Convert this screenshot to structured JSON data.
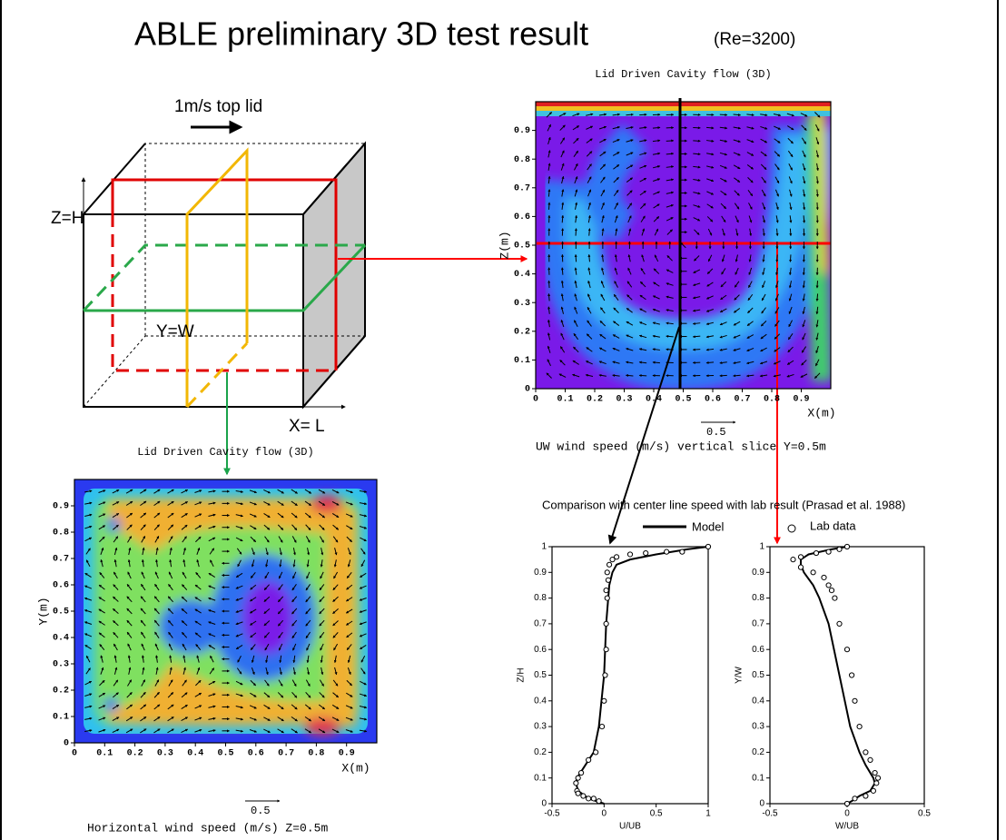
{
  "title": "ABLE preliminary 3D test  result",
  "subtitle": "(Re=3200)",
  "diagram": {
    "lid_label": "1m/s top lid",
    "z_label": "Z=H",
    "y_label": "Y=W",
    "x_label": "X= L"
  },
  "comparison_title": "Comparison  with center line speed with lab result (Prasad et al. 1988)",
  "chart_data": [
    {
      "type": "contour",
      "title": "Lid Driven Cavity flow (3D)",
      "x_label": "X(m)",
      "y_label": "Z(m)",
      "caption": "UW wind speed (m/s) vertical slice Y=0.5m",
      "scale_label": "0.5",
      "xlim": [
        0,
        1
      ],
      "ylim": [
        0,
        1
      ],
      "xticks": [
        0,
        0.1,
        0.2,
        0.3,
        0.4,
        0.5,
        0.6,
        0.7,
        0.8,
        0.9
      ],
      "yticks": [
        0,
        0.1,
        0.2,
        0.3,
        0.4,
        0.5,
        0.6,
        0.7,
        0.8,
        0.9
      ]
    },
    {
      "type": "contour",
      "title": "Lid Driven Cavity flow (3D)",
      "x_label": "X(m)",
      "y_label": "Y(m)",
      "caption": "Horizontal wind speed (m/s) Z=0.5m",
      "scale_label": "0.5",
      "xlim": [
        0,
        1
      ],
      "ylim": [
        0,
        1
      ],
      "xticks": [
        0,
        0.1,
        0.2,
        0.3,
        0.4,
        0.5,
        0.6,
        0.7,
        0.8,
        0.9
      ],
      "yticks": [
        0,
        0.1,
        0.2,
        0.3,
        0.4,
        0.5,
        0.6,
        0.7,
        0.8,
        0.9
      ]
    },
    {
      "type": "line",
      "x_label": "U/UB",
      "y_label": "Z/H",
      "xlim": [
        -0.5,
        1
      ],
      "ylim": [
        0,
        1
      ],
      "xticks": [
        -0.5,
        0,
        0.5,
        1
      ],
      "yticks": [
        0,
        0.1,
        0.2,
        0.3,
        0.4,
        0.5,
        0.6,
        0.7,
        0.8,
        0.9,
        1
      ],
      "series": [
        {
          "name": "Model",
          "mode": "line",
          "color": "#000000",
          "x": [
            0,
            -0.15,
            -0.25,
            -0.27,
            -0.26,
            -0.18,
            -0.1,
            -0.05,
            0,
            0.02,
            0.05,
            0.08,
            0.12,
            0.25,
            0.5,
            0.8,
            1
          ],
          "y": [
            0,
            0.02,
            0.05,
            0.08,
            0.1,
            0.15,
            0.2,
            0.3,
            0.5,
            0.7,
            0.85,
            0.9,
            0.93,
            0.95,
            0.97,
            0.99,
            1
          ]
        },
        {
          "name": "Lab data",
          "mode": "markers",
          "color": "#000000",
          "x": [
            1,
            0.75,
            0.6,
            0.4,
            0.25,
            0.12,
            0.08,
            0.05,
            0.03,
            0.04,
            0.02,
            0.03,
            0.02,
            0.02,
            0.01,
            0,
            -0.02,
            -0.08,
            -0.15,
            -0.22,
            -0.25,
            -0.27,
            -0.26,
            -0.25,
            -0.2,
            -0.15,
            -0.1,
            -0.05
          ],
          "y": [
            1,
            0.98,
            0.98,
            0.975,
            0.97,
            0.96,
            0.95,
            0.93,
            0.9,
            0.87,
            0.83,
            0.8,
            0.7,
            0.6,
            0.5,
            0.4,
            0.3,
            0.2,
            0.17,
            0.12,
            0.1,
            0.08,
            0.05,
            0.04,
            0.03,
            0.02,
            0.02,
            0.01
          ]
        }
      ]
    },
    {
      "type": "line",
      "x_label": "W/UB",
      "y_label": "Y/W",
      "xlim": [
        -0.5,
        0.5
      ],
      "ylim": [
        0,
        1
      ],
      "xticks": [
        -0.5,
        0,
        0.5
      ],
      "yticks": [
        0,
        0.1,
        0.2,
        0.3,
        0.4,
        0.5,
        0.6,
        0.7,
        0.8,
        0.9,
        1
      ],
      "series": [
        {
          "mode": "line",
          "color": "#000000",
          "x": [
            0,
            -0.1,
            -0.25,
            -0.3,
            -0.3,
            -0.28,
            -0.22,
            -0.18,
            -0.12,
            -0.05,
            0.02,
            0.08,
            0.12,
            0.17,
            0.18,
            0.15,
            0.08,
            0.03,
            0
          ],
          "y": [
            1,
            0.99,
            0.97,
            0.95,
            0.93,
            0.9,
            0.85,
            0.8,
            0.7,
            0.5,
            0.3,
            0.2,
            0.15,
            0.1,
            0.08,
            0.05,
            0.03,
            0.01,
            0
          ]
        },
        {
          "mode": "markers",
          "color": "#000000",
          "x": [
            0,
            -0.05,
            -0.12,
            -0.2,
            -0.3,
            -0.35,
            -0.3,
            -0.22,
            -0.15,
            -0.12,
            -0.1,
            -0.08,
            -0.05,
            0,
            0.03,
            0.05,
            0.08,
            0.12,
            0.15,
            0.18,
            0.2,
            0.19,
            0.17,
            0.12,
            0.05,
            0
          ],
          "y": [
            1,
            0.99,
            0.98,
            0.975,
            0.96,
            0.95,
            0.92,
            0.9,
            0.88,
            0.85,
            0.83,
            0.8,
            0.7,
            0.6,
            0.5,
            0.4,
            0.3,
            0.2,
            0.17,
            0.12,
            0.1,
            0.08,
            0.05,
            0.03,
            0.02,
            0
          ]
        }
      ]
    }
  ]
}
